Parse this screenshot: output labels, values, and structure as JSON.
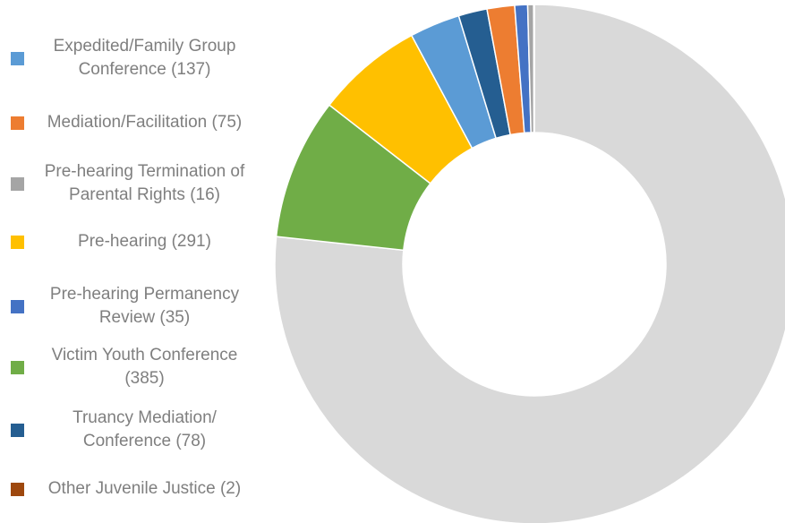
{
  "chart_data": {
    "type": "donut",
    "categories": [
      null,
      "Victim Youth Conference (385)",
      "Pre-hearing  (291)",
      "Expedited/Family Group Conference (137)",
      "Truancy Mediation/ Conference (78)",
      "Mediation/Facilitation (75)",
      "Pre-hearing Permanency Review (35)",
      "Pre-hearing Termination of Parental Rights (16)",
      "Other Juvenile Justice (2)"
    ],
    "values": [
      3354,
      385,
      291,
      137,
      78,
      75,
      35,
      16,
      2
    ],
    "colors": [
      "#d9d9d9",
      "#70ad47",
      "#ffc000",
      "#5b9bd5",
      "#255e91",
      "#ed7d31",
      "#4472c4",
      "#a5a5a5",
      "#9e480e"
    ],
    "legend_order": [
      3,
      5,
      7,
      2,
      6,
      1,
      4,
      8
    ],
    "legend": "left"
  }
}
